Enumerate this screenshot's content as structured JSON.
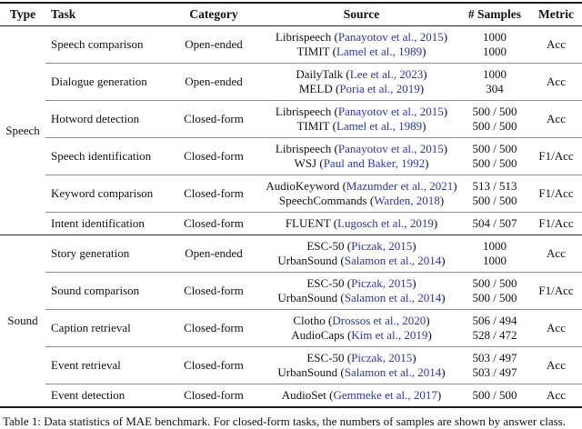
{
  "caption": "Table 1: Data statistics of MAE benchmark. For closed-form tasks, the numbers of samples are shown by answer class.",
  "colors": {
    "citation_blue": "#2b35b5",
    "rule_dark": "#1a1a1a",
    "rule_light": "#8f8f8f"
  },
  "table": {
    "headers": [
      "Type",
      "Task",
      "Category",
      "Source",
      "# Samples",
      "Metric"
    ],
    "sections": [
      {
        "type": "Speech",
        "rows": [
          {
            "task": "Speech comparison",
            "category": "Open-ended",
            "sources": [
              {
                "name": "Librispeech",
                "cite": "Panayotov et al., 2015",
                "samples": "1000"
              },
              {
                "name": "TIMIT",
                "cite": "Lamel et al., 1989",
                "samples": "1000"
              }
            ],
            "metric": "Acc"
          },
          {
            "task": "Dialogue generation",
            "category": "Open-ended",
            "sources": [
              {
                "name": "DailyTalk",
                "cite": "Lee et al., 2023",
                "samples": "1000"
              },
              {
                "name": "MELD",
                "cite": "Poria et al., 2019",
                "samples": "304"
              }
            ],
            "metric": "Acc"
          },
          {
            "task": "Hotword detection",
            "category": "Closed-form",
            "sources": [
              {
                "name": "Librispeech",
                "cite": "Panayotov et al., 2015",
                "samples": "500 / 500"
              },
              {
                "name": "TIMIT",
                "cite": "Lamel et al., 1989",
                "samples": "500 / 500"
              }
            ],
            "metric": "Acc"
          },
          {
            "task": "Speech identification",
            "category": "Closed-form",
            "sources": [
              {
                "name": "Librispeech",
                "cite": "Panayotov et al., 2015",
                "samples": "500 / 500"
              },
              {
                "name": "WSJ",
                "cite": "Paul and Baker, 1992",
                "samples": "500 / 500"
              }
            ],
            "metric": "F1/Acc"
          },
          {
            "task": "Keyword comparison",
            "category": "Closed-form",
            "sources": [
              {
                "name": "AudioKeyword",
                "cite": "Mazumder et al., 2021",
                "samples": "513 / 513"
              },
              {
                "name": "SpeechCommands",
                "cite": "Warden, 2018",
                "samples": "500 / 500"
              }
            ],
            "metric": "F1/Acc"
          },
          {
            "task": "Intent identification",
            "category": "Closed-form",
            "sources": [
              {
                "name": "FLUENT",
                "cite": "Lugosch et al., 2019",
                "samples": "504 / 507"
              }
            ],
            "metric": "F1/Acc"
          }
        ]
      },
      {
        "type": "Sound",
        "rows": [
          {
            "task": "Story generation",
            "category": "Open-ended",
            "sources": [
              {
                "name": "ESC-50",
                "cite": "Piczak, 2015",
                "samples": "1000"
              },
              {
                "name": "UrbanSound",
                "cite": "Salamon et al., 2014",
                "samples": "1000"
              }
            ],
            "metric": "Acc"
          },
          {
            "task": "Sound comparison",
            "category": "Closed-form",
            "sources": [
              {
                "name": "ESC-50",
                "cite": "Piczak, 2015",
                "samples": "500 / 500"
              },
              {
                "name": "UrbanSound",
                "cite": "Salamon et al., 2014",
                "samples": "500 / 500"
              }
            ],
            "metric": "F1/Acc"
          },
          {
            "task": "Caption retrieval",
            "category": "Closed-form",
            "sources": [
              {
                "name": "Clotho",
                "cite": "Drossos et al., 2020",
                "samples": "506 / 494"
              },
              {
                "name": "AudioCaps",
                "cite": "Kim et al., 2019",
                "samples": "528 / 472"
              }
            ],
            "metric": "Acc"
          },
          {
            "task": "Event retrieval",
            "category": "Closed-form",
            "sources": [
              {
                "name": "ESC-50",
                "cite": "Piczak, 2015",
                "samples": "503 / 497"
              },
              {
                "name": "UrbanSound",
                "cite": "Salamon et al., 2014",
                "samples": "503 / 497"
              }
            ],
            "metric": "Acc"
          },
          {
            "task": "Event detection",
            "category": "Closed-form",
            "sources": [
              {
                "name": "AudioSet",
                "cite": "Gemmeke et al., 2017",
                "samples": "500 / 500"
              }
            ],
            "metric": "Acc"
          }
        ]
      }
    ]
  }
}
